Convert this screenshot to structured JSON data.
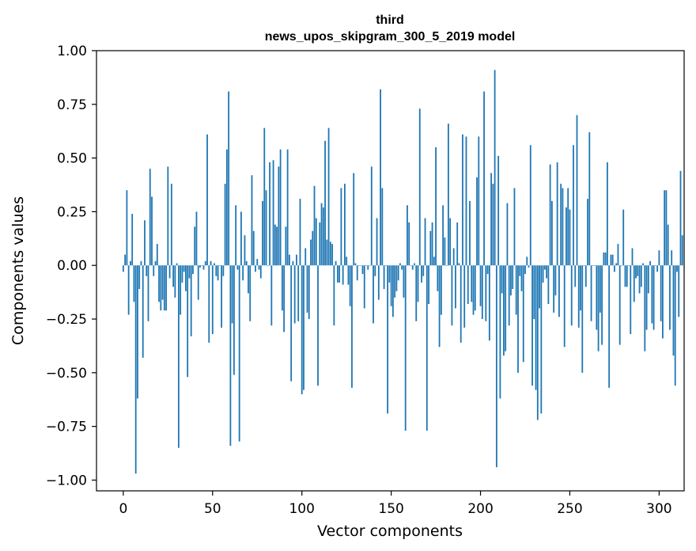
{
  "chart_data": {
    "type": "bar",
    "title": [
      "third",
      "news_upos_skipgram_300_5_2019 model"
    ],
    "xlabel": "Vector components",
    "ylabel": "Components values",
    "xlim": [
      -15,
      314
    ],
    "ylim": [
      -1.05,
      1.0
    ],
    "xticks": [
      0,
      50,
      100,
      150,
      200,
      250,
      300
    ],
    "yticks": [
      -1.0,
      -0.75,
      -0.5,
      -0.25,
      0.0,
      0.25,
      0.5,
      0.75,
      1.0
    ],
    "ytick_labels": [
      "−1.00",
      "−0.75",
      "−0.50",
      "−0.25",
      "0.00",
      "0.25",
      "0.50",
      "0.75",
      "1.00"
    ],
    "grid": false,
    "bar_color": "#1f77b4",
    "values": [
      -0.03,
      0.05,
      0.35,
      -0.23,
      0.02,
      0.24,
      -0.17,
      -0.97,
      -0.62,
      -0.11,
      0.02,
      -0.43,
      0.21,
      -0.05,
      -0.26,
      0.45,
      0.32,
      -0.05,
      0.02,
      0.1,
      -0.17,
      -0.21,
      -0.16,
      -0.21,
      -0.21,
      0.46,
      -0.06,
      0.38,
      -0.1,
      -0.15,
      0.01,
      -0.85,
      -0.23,
      -0.08,
      -0.03,
      -0.12,
      -0.52,
      -0.06,
      -0.33,
      -0.04,
      0.18,
      0.25,
      -0.16,
      -0.01,
      0.0,
      -0.02,
      0.02,
      0.61,
      -0.36,
      0.02,
      -0.32,
      0.01,
      -0.05,
      -0.07,
      0.0,
      -0.29,
      -0.05,
      0.38,
      0.54,
      0.81,
      -0.84,
      -0.27,
      -0.51,
      0.28,
      -0.02,
      -0.82,
      0.25,
      -0.07,
      0.14,
      0.02,
      -0.13,
      -0.26,
      0.42,
      0.16,
      -0.03,
      0.03,
      -0.02,
      -0.06,
      0.3,
      0.64,
      0.35,
      0.0,
      0.48,
      -0.28,
      0.49,
      0.19,
      0.18,
      0.46,
      0.54,
      -0.21,
      -0.31,
      0.18,
      0.54,
      0.05,
      -0.54,
      0.02,
      -0.27,
      0.05,
      -0.26,
      0.31,
      -0.6,
      -0.58,
      0.08,
      -0.22,
      -0.25,
      0.12,
      0.16,
      0.37,
      0.22,
      -0.56,
      0.2,
      0.29,
      0.27,
      0.58,
      0.12,
      0.64,
      0.11,
      0.1,
      -0.28,
      0.02,
      -0.08,
      -0.08,
      0.36,
      -0.09,
      0.38,
      0.04,
      -0.09,
      -0.19,
      -0.57,
      0.43,
      0.01,
      -0.07,
      0.0,
      0.0,
      -0.04,
      -0.2,
      0.0,
      -0.02,
      0.0,
      0.46,
      -0.27,
      -0.05,
      0.22,
      -0.16,
      0.82,
      0.36,
      -0.11,
      0.0,
      -0.69,
      -0.08,
      -0.19,
      -0.24,
      -0.15,
      -0.12,
      -0.07,
      0.01,
      -0.02,
      -0.15,
      -0.77,
      0.28,
      0.2,
      0.0,
      -0.02,
      0.01,
      -0.26,
      -0.17,
      0.73,
      -0.08,
      -0.05,
      0.22,
      -0.77,
      -0.18,
      0.16,
      0.2,
      0.04,
      0.55,
      -0.12,
      -0.38,
      -0.23,
      0.28,
      0.13,
      0.0,
      0.66,
      0.22,
      -0.28,
      0.08,
      -0.2,
      0.2,
      0.01,
      -0.36,
      0.61,
      -0.29,
      0.6,
      -0.18,
      0.3,
      -0.17,
      -0.23,
      -0.21,
      0.41,
      0.6,
      -0.19,
      -0.25,
      0.81,
      -0.26,
      -0.04,
      -0.35,
      0.43,
      0.38,
      0.91,
      -0.94,
      0.51,
      -0.62,
      -0.13,
      -0.42,
      -0.4,
      0.29,
      -0.28,
      -0.14,
      -0.11,
      0.36,
      -0.23,
      -0.5,
      -0.05,
      -0.12,
      -0.45,
      -0.04,
      0.04,
      -0.01,
      0.56,
      -0.56,
      -0.25,
      -0.58,
      -0.72,
      -0.2,
      -0.69,
      -0.08,
      -0.02,
      -0.06,
      -0.18,
      0.47,
      0.3,
      -0.22,
      -0.14,
      0.48,
      -0.24,
      0.38,
      0.36,
      -0.38,
      0.27,
      0.36,
      0.26,
      -0.28,
      0.56,
      -0.1,
      0.7,
      -0.29,
      -0.21,
      -0.5,
      0.0,
      -0.1,
      0.31,
      0.62,
      -0.26,
      0.0,
      0.0,
      -0.3,
      -0.4,
      -0.22,
      -0.37,
      0.06,
      0.06,
      0.48,
      -0.57,
      0.05,
      0.05,
      -0.03,
      0.01,
      0.1,
      -0.37,
      0.0,
      0.26,
      -0.1,
      -0.1,
      0.0,
      -0.32,
      0.08,
      -0.17,
      -0.06,
      -0.05,
      -0.13,
      -0.1,
      0.01,
      -0.4,
      -0.3,
      -0.13,
      0.02,
      -0.27,
      -0.3,
      0.0,
      -0.03,
      0.07,
      -0.26,
      -0.34,
      0.35,
      0.35,
      0.19,
      -0.3,
      0.07,
      -0.42,
      -0.56,
      -0.03,
      -0.24,
      0.44,
      0.14
    ]
  }
}
